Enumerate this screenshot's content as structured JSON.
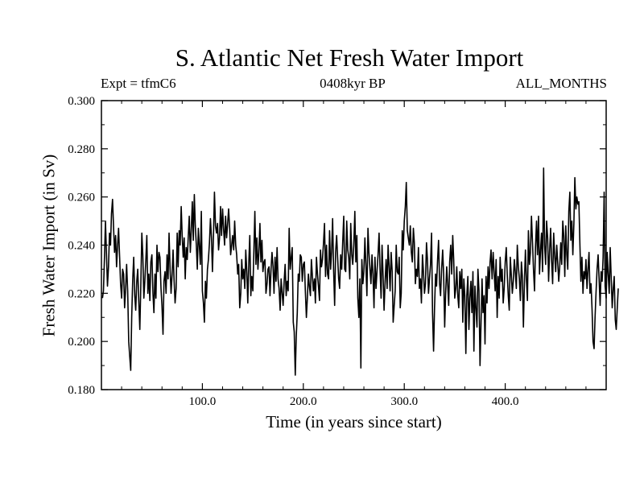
{
  "chart_data": {
    "type": "line",
    "title": "S. Atlantic Net Fresh Water Import",
    "subtitle_left": "Expt = tfmC6",
    "subtitle_center": "0408kyr BP",
    "subtitle_right": "ALL_MONTHS",
    "xlabel": "Time (in years since start)",
    "ylabel": "Fresh Water Import (in Sv)",
    "xlim": [
      0,
      500
    ],
    "ylim": [
      0.18,
      0.3
    ],
    "x_ticks": [
      100,
      200,
      300,
      400
    ],
    "x_tick_labels": [
      "100.0",
      "200.0",
      "300.0",
      "400.0"
    ],
    "y_ticks": [
      0.18,
      0.2,
      0.22,
      0.24,
      0.26,
      0.28,
      0.3
    ],
    "y_tick_labels": [
      "0.180",
      "0.200",
      "0.220",
      "0.240",
      "0.260",
      "0.280",
      "0.300"
    ],
    "series": [
      {
        "name": "Net Fresh Water Import",
        "color": "#000000",
        "x_start": 1,
        "x_step": 1,
        "values": [
          0.218,
          0.221,
          0.235,
          0.25,
          0.236,
          0.223,
          0.231,
          0.245,
          0.24,
          0.253,
          0.259,
          0.248,
          0.237,
          0.244,
          0.231,
          0.24,
          0.247,
          0.235,
          0.224,
          0.218,
          0.23,
          0.228,
          0.214,
          0.222,
          0.232,
          0.221,
          0.2,
          0.194,
          0.188,
          0.21,
          0.226,
          0.235,
          0.219,
          0.213,
          0.225,
          0.23,
          0.217,
          0.205,
          0.223,
          0.245,
          0.236,
          0.218,
          0.225,
          0.234,
          0.244,
          0.22,
          0.228,
          0.217,
          0.233,
          0.236,
          0.22,
          0.212,
          0.228,
          0.218,
          0.24,
          0.229,
          0.237,
          0.235,
          0.222,
          0.215,
          0.203,
          0.225,
          0.229,
          0.22,
          0.236,
          0.226,
          0.245,
          0.23,
          0.22,
          0.228,
          0.238,
          0.225,
          0.216,
          0.222,
          0.245,
          0.231,
          0.246,
          0.24,
          0.256,
          0.244,
          0.235,
          0.243,
          0.226,
          0.239,
          0.234,
          0.243,
          0.252,
          0.237,
          0.246,
          0.258,
          0.242,
          0.261,
          0.248,
          0.24,
          0.23,
          0.247,
          0.24,
          0.232,
          0.254,
          0.221,
          0.216,
          0.208,
          0.225,
          0.218,
          0.23,
          0.234,
          0.241,
          0.251,
          0.243,
          0.229,
          0.244,
          0.262,
          0.248,
          0.245,
          0.249,
          0.238,
          0.243,
          0.256,
          0.244,
          0.255,
          0.247,
          0.24,
          0.252,
          0.243,
          0.249,
          0.255,
          0.247,
          0.236,
          0.24,
          0.244,
          0.238,
          0.25,
          0.24,
          0.236,
          0.228,
          0.232,
          0.214,
          0.22,
          0.234,
          0.226,
          0.23,
          0.222,
          0.238,
          0.229,
          0.216,
          0.233,
          0.244,
          0.219,
          0.227,
          0.221,
          0.238,
          0.254,
          0.232,
          0.243,
          0.23,
          0.237,
          0.249,
          0.233,
          0.242,
          0.229,
          0.233,
          0.234,
          0.22,
          0.224,
          0.23,
          0.231,
          0.219,
          0.23,
          0.237,
          0.231,
          0.22,
          0.235,
          0.225,
          0.239,
          0.226,
          0.222,
          0.213,
          0.226,
          0.22,
          0.215,
          0.225,
          0.232,
          0.219,
          0.225,
          0.221,
          0.247,
          0.23,
          0.235,
          0.239,
          0.208,
          0.204,
          0.186,
          0.202,
          0.212,
          0.228,
          0.225,
          0.236,
          0.235,
          0.225,
          0.232,
          0.233,
          0.221,
          0.21,
          0.218,
          0.228,
          0.223,
          0.219,
          0.234,
          0.227,
          0.221,
          0.226,
          0.216,
          0.235,
          0.228,
          0.223,
          0.217,
          0.238,
          0.231,
          0.234,
          0.241,
          0.249,
          0.227,
          0.24,
          0.228,
          0.226,
          0.246,
          0.23,
          0.237,
          0.251,
          0.23,
          0.215,
          0.237,
          0.244,
          0.235,
          0.226,
          0.222,
          0.236,
          0.23,
          0.241,
          0.252,
          0.23,
          0.229,
          0.25,
          0.238,
          0.235,
          0.226,
          0.249,
          0.236,
          0.232,
          0.24,
          0.254,
          0.233,
          0.244,
          0.218,
          0.21,
          0.226,
          0.189,
          0.234,
          0.224,
          0.229,
          0.243,
          0.232,
          0.219,
          0.247,
          0.237,
          0.23,
          0.224,
          0.236,
          0.228,
          0.214,
          0.235,
          0.222,
          0.229,
          0.236,
          0.245,
          0.23,
          0.218,
          0.24,
          0.227,
          0.213,
          0.225,
          0.234,
          0.222,
          0.24,
          0.231,
          0.221,
          0.237,
          0.229,
          0.208,
          0.215,
          0.221,
          0.24,
          0.229,
          0.228,
          0.235,
          0.214,
          0.22,
          0.246,
          0.238,
          0.25,
          0.256,
          0.266,
          0.246,
          0.243,
          0.24,
          0.248,
          0.237,
          0.233,
          0.247,
          0.241,
          0.224,
          0.23,
          0.227,
          0.239,
          0.222,
          0.226,
          0.216,
          0.236,
          0.229,
          0.22,
          0.224,
          0.241,
          0.234,
          0.22,
          0.226,
          0.232,
          0.245,
          0.212,
          0.196,
          0.214,
          0.228,
          0.223,
          0.234,
          0.242,
          0.224,
          0.219,
          0.23,
          0.238,
          0.228,
          0.206,
          0.22,
          0.231,
          0.224,
          0.215,
          0.233,
          0.24,
          0.228,
          0.244,
          0.234,
          0.218,
          0.222,
          0.231,
          0.219,
          0.214,
          0.229,
          0.222,
          0.23,
          0.208,
          0.226,
          0.219,
          0.195,
          0.219,
          0.227,
          0.205,
          0.218,
          0.225,
          0.212,
          0.229,
          0.196,
          0.223,
          0.214,
          0.206,
          0.23,
          0.221,
          0.19,
          0.207,
          0.226,
          0.212,
          0.219,
          0.199,
          0.227,
          0.216,
          0.231,
          0.222,
          0.233,
          0.238,
          0.226,
          0.237,
          0.229,
          0.221,
          0.234,
          0.21,
          0.227,
          0.218,
          0.235,
          0.225,
          0.23,
          0.216,
          0.222,
          0.233,
          0.239,
          0.228,
          0.219,
          0.213,
          0.235,
          0.228,
          0.22,
          0.225,
          0.234,
          0.229,
          0.222,
          0.24,
          0.231,
          0.226,
          0.217,
          0.233,
          0.227,
          0.206,
          0.224,
          0.238,
          0.226,
          0.217,
          0.246,
          0.232,
          0.237,
          0.252,
          0.241,
          0.23,
          0.221,
          0.239,
          0.25,
          0.236,
          0.252,
          0.228,
          0.238,
          0.245,
          0.229,
          0.272,
          0.24,
          0.232,
          0.25,
          0.243,
          0.225,
          0.238,
          0.247,
          0.233,
          0.224,
          0.245,
          0.236,
          0.229,
          0.24,
          0.233,
          0.225,
          0.231,
          0.241,
          0.232,
          0.25,
          0.244,
          0.227,
          0.248,
          0.236,
          0.23,
          0.254,
          0.262,
          0.242,
          0.25,
          0.236,
          0.249,
          0.268,
          0.255,
          0.26,
          0.257,
          0.258,
          0.24,
          0.225,
          0.235,
          0.22,
          0.229,
          0.226,
          0.234,
          0.222,
          0.23,
          0.237,
          0.22,
          0.224,
          0.214,
          0.2,
          0.197,
          0.21,
          0.221,
          0.23,
          0.236,
          0.226,
          0.215,
          0.229,
          0.225,
          0.235,
          0.262,
          0.223,
          0.218,
          0.237,
          0.228,
          0.22,
          0.239,
          0.226,
          0.214,
          0.222,
          0.227,
          0.209,
          0.205,
          0.214,
          0.222
        ]
      }
    ]
  }
}
